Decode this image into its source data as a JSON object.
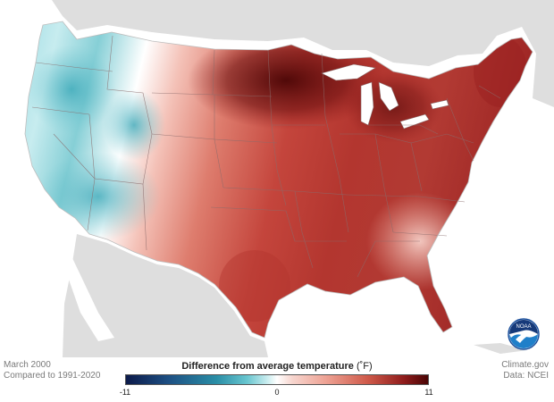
{
  "meta": {
    "period": "March 2000",
    "baseline": "Compared to 1991-2020",
    "source_site": "Climate.gov",
    "source_data": "Data: NCEI"
  },
  "legend": {
    "title": "Difference from average temperature",
    "unit": "(˚F)",
    "min_label": "-11",
    "mid_label": "0",
    "max_label": "11",
    "scale_min": -11,
    "scale_max": 11
  },
  "logo": {
    "label": "NOAA",
    "icon": "noaa-logo-icon"
  },
  "colors": {
    "ocean": "#ffffff",
    "land_outside": "#dedede",
    "great_lakes": "#ffffff",
    "state_borders": "#8a6b6b",
    "cold_max": "#0c1a4a",
    "neutral": "#ffffff",
    "warm_max": "#4a0505"
  }
}
